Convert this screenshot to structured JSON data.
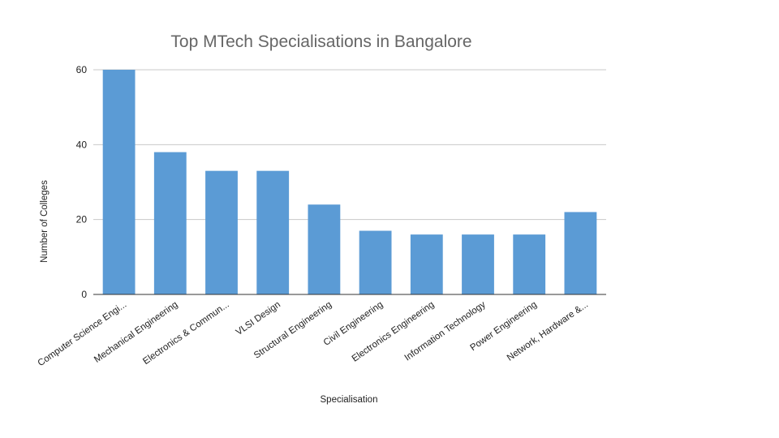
{
  "chart_data": {
    "type": "bar",
    "title": "Top MTech Specialisations in Bangalore",
    "xlabel": "Specialisation",
    "ylabel": "Number of Colleges",
    "categories": [
      "Computer Science Engi...",
      "Mechanical Engineering",
      "Electronics & Commun...",
      "VLSI Design",
      "Structural Engineering",
      "Civil Engineering",
      "Electronics Engineering",
      "Information Technology",
      "Power Engineering",
      "Network, Hardware &..."
    ],
    "values": [
      60,
      38,
      33,
      33,
      24,
      17,
      16,
      16,
      16,
      22
    ],
    "ylim": [
      0,
      60
    ],
    "yticks": [
      "0",
      "20",
      "40",
      "60"
    ],
    "grid": true,
    "bar_color": "#5b9bd5"
  }
}
